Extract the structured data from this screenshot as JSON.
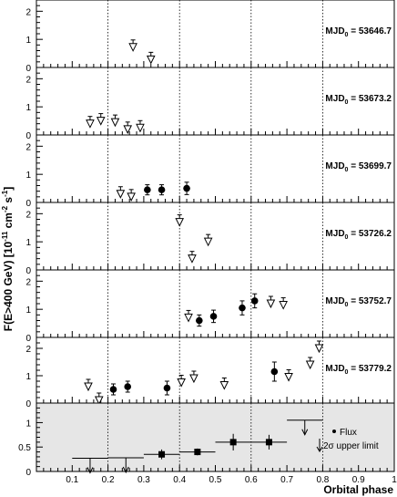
{
  "chart_data": {
    "type": "scatter",
    "ylabel": "F(E>400 GeV) [10^-11 cm^-2 s^-1]",
    "ylabel_parts": {
      "main": "F(E>400 GeV) [10",
      "exp": "-11",
      "unit": " cm",
      "unit_exp1": "-2",
      "s": " s",
      "unit_exp2": "-1",
      "close": "]"
    },
    "xlabel": "Orbital phase",
    "xlim": [
      0,
      1
    ],
    "x_ticks": [
      "0.1",
      "0.2",
      "0.3",
      "0.4",
      "0.5",
      "0.6",
      "0.7",
      "0.8",
      "0.9",
      "1"
    ],
    "x_tick_values": [
      0.1,
      0.2,
      0.3,
      0.4,
      0.5,
      0.6,
      0.7,
      0.8,
      0.9,
      1.0
    ],
    "reference_lines_x": [
      0.2,
      0.4,
      0.6,
      0.8
    ],
    "panels": [
      {
        "label_main": "MJD",
        "label_sub": "0",
        "label_value": " = 53646.7",
        "ylim": [
          0,
          2.4
        ],
        "y_ticks": [
          "0",
          "1",
          "2"
        ],
        "y_tick_values": [
          0,
          1,
          2
        ],
        "points": [],
        "upper_limits": [
          0.27,
          0.32
        ],
        "upper_limits_y": [
          0.72,
          0.28
        ],
        "series_points": [],
        "series_upper_limits": [
          {
            "x": 0.27,
            "y": 0.72
          },
          {
            "x": 0.32,
            "y": 0.28
          }
        ]
      },
      {
        "label_main": "MJD",
        "label_sub": "0",
        "label_value": " = 53673.2",
        "ylim": [
          0,
          2.4
        ],
        "y_ticks": [
          "0",
          "1",
          "2"
        ],
        "y_tick_values": [
          0,
          1,
          2
        ],
        "series_points": [],
        "series_upper_limits": [
          {
            "x": 0.15,
            "y": 0.4
          },
          {
            "x": 0.18,
            "y": 0.5
          },
          {
            "x": 0.22,
            "y": 0.45
          },
          {
            "x": 0.255,
            "y": 0.2
          },
          {
            "x": 0.29,
            "y": 0.25
          }
        ]
      },
      {
        "label_main": "MJD",
        "label_sub": "0",
        "label_value": " = 53699.7",
        "ylim": [
          0,
          2.4
        ],
        "y_ticks": [
          "0",
          "1",
          "2"
        ],
        "y_tick_values": [
          0,
          1,
          2
        ],
        "series_points": [
          {
            "x": 0.31,
            "y": 0.45,
            "err": 0.18
          },
          {
            "x": 0.35,
            "y": 0.45,
            "err": 0.18
          },
          {
            "x": 0.42,
            "y": 0.5,
            "err": 0.22
          }
        ],
        "series_upper_limits": [
          {
            "x": 0.235,
            "y": 0.3
          },
          {
            "x": 0.265,
            "y": 0.2
          }
        ]
      },
      {
        "label_main": "MJD",
        "label_sub": "0",
        "label_value": " = 53726.2",
        "ylim": [
          0,
          2.4
        ],
        "y_ticks": [
          "0",
          "1",
          "2"
        ],
        "y_tick_values": [
          0,
          1,
          2
        ],
        "series_points": [],
        "series_upper_limits": [
          {
            "x": 0.4,
            "y": 1.7
          },
          {
            "x": 0.435,
            "y": 0.4
          },
          {
            "x": 0.48,
            "y": 1.0
          }
        ]
      },
      {
        "label_main": "MJD",
        "label_sub": "0",
        "label_value": " = 53752.7",
        "ylim": [
          0,
          2.4
        ],
        "y_ticks": [
          "0",
          "1",
          "2"
        ],
        "y_tick_values": [
          0,
          1,
          2
        ],
        "series_points": [
          {
            "x": 0.455,
            "y": 0.6,
            "err": 0.2
          },
          {
            "x": 0.495,
            "y": 0.75,
            "err": 0.22
          },
          {
            "x": 0.575,
            "y": 1.05,
            "err": 0.25
          },
          {
            "x": 0.61,
            "y": 1.3,
            "err": 0.25
          }
        ],
        "series_upper_limits": [
          {
            "x": 0.425,
            "y": 0.7
          },
          {
            "x": 0.655,
            "y": 1.2
          },
          {
            "x": 0.69,
            "y": 1.15
          }
        ]
      },
      {
        "label_main": "MJD",
        "label_sub": "0",
        "label_value": " = 53779.2",
        "ylim": [
          0,
          2.4
        ],
        "y_ticks": [
          "0",
          "1",
          "2"
        ],
        "y_tick_values": [
          0,
          1,
          2
        ],
        "series_points": [
          {
            "x": 0.215,
            "y": 0.5,
            "err": 0.2
          },
          {
            "x": 0.255,
            "y": 0.6,
            "err": 0.2
          },
          {
            "x": 0.365,
            "y": 0.55,
            "err": 0.25
          },
          {
            "x": 0.665,
            "y": 1.15,
            "err": 0.35
          }
        ],
        "series_upper_limits": [
          {
            "x": 0.145,
            "y": 0.6
          },
          {
            "x": 0.175,
            "y": 0.1
          },
          {
            "x": 0.405,
            "y": 0.75
          },
          {
            "x": 0.44,
            "y": 0.9
          },
          {
            "x": 0.525,
            "y": 0.65
          },
          {
            "x": 0.705,
            "y": 0.95
          },
          {
            "x": 0.765,
            "y": 1.4
          },
          {
            "x": 0.79,
            "y": 2.0
          }
        ]
      },
      {
        "shaded": true,
        "ylim": [
          0,
          1.4
        ],
        "y_ticks": [
          "0",
          "0.5",
          "1"
        ],
        "y_tick_values": [
          0,
          0.5,
          1
        ],
        "binned_points": [
          {
            "x": 0.35,
            "y": 0.35,
            "xerr": 0.05,
            "yerr": 0.1
          },
          {
            "x": 0.45,
            "y": 0.4,
            "xerr": 0.05,
            "yerr": 0.07
          },
          {
            "x": 0.55,
            "y": 0.6,
            "xerr": 0.05,
            "yerr": 0.17
          },
          {
            "x": 0.65,
            "y": 0.6,
            "xerr": 0.05,
            "yerr": 0.15
          }
        ],
        "binned_upper_limits": [
          {
            "x": 0.15,
            "y": 0.27,
            "xerr": 0.05
          },
          {
            "x": 0.25,
            "y": 0.28,
            "xerr": 0.05
          },
          {
            "x": 0.75,
            "y": 1.05,
            "xerr": 0.05
          }
        ]
      }
    ],
    "legend": {
      "placement": "bottom-right",
      "flux_label": "Flux",
      "ul_label_sigma": "σ",
      "ul_label": "2σ upper limit",
      "ul_label_parts": {
        "pre": "2",
        "sigma": "σ",
        "post": " upper limit"
      }
    },
    "colors": {
      "shaded_panel": "#e6e6e6",
      "ink": "#000000"
    }
  }
}
